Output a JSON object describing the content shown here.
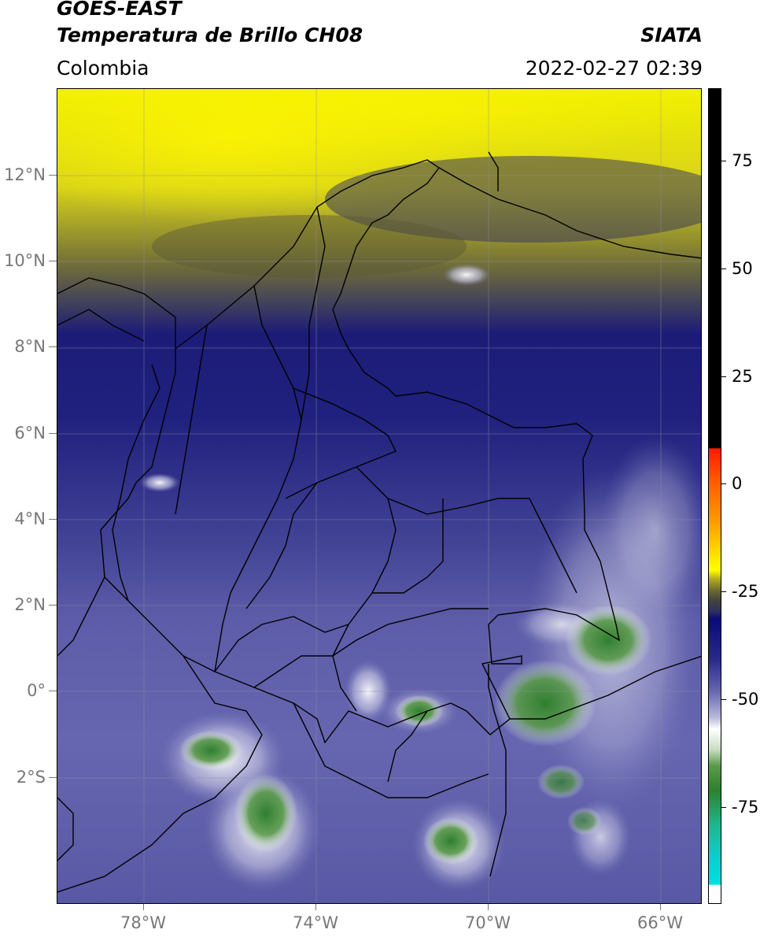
{
  "header": {
    "title_line1": "GOES-EAST",
    "title_line2": "Temperatura de Brillo CH08",
    "brand": "SIATA",
    "region": "Colombia",
    "timestamp": "2022-02-27 02:39"
  },
  "map": {
    "lat_labels": [
      "12°N",
      "10°N",
      "8°N",
      "6°N",
      "4°N",
      "2°N",
      "0°",
      "2°S"
    ],
    "lon_labels": [
      "78°W",
      "74°W",
      "70°W",
      "66°W"
    ]
  },
  "colorbar": {
    "tick_labels": [
      "75",
      "50",
      "25",
      "0",
      "-25",
      "-50",
      "-75"
    ],
    "colors": {
      "black": "#000000",
      "red": "#ff1a00",
      "orange": "#ff9a00",
      "yellow": "#ffff00",
      "olive": "#9a9a1a",
      "dark_gray": "#404040",
      "navy": "#0a0a7a",
      "blue_gray": "#6a6ab0",
      "white": "#ffffff",
      "green": "#2f7f2f",
      "teal": "#1fb58a",
      "cyan": "#00e0e0"
    }
  }
}
